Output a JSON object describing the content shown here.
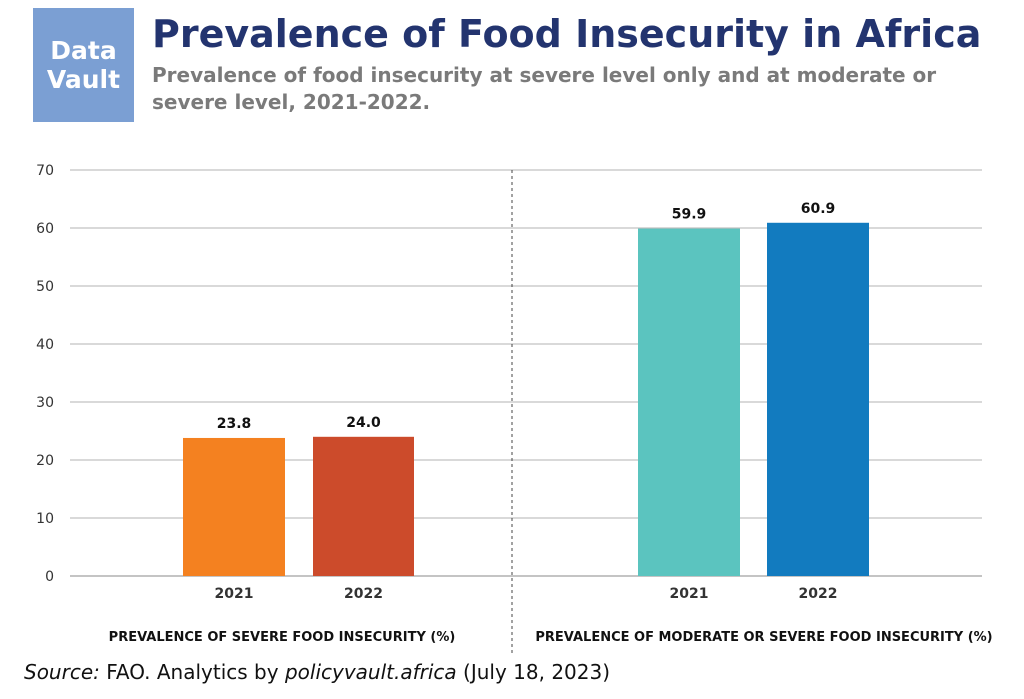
{
  "logo": {
    "line1": "Data",
    "line2": "Vault"
  },
  "title": "Prevalence of Food Insecurity in Africa",
  "subtitle": "Prevalence of food insecurity at severe level only and at moderate or severe level, 2021-2022.",
  "source": {
    "label": "Source:",
    "text_before": " FAO. Analytics by ",
    "site": "policyvault.africa",
    "text_after": " (July 18, 2023)"
  },
  "chart_data": {
    "type": "bar",
    "ylim": [
      0,
      70
    ],
    "yticks": [
      0,
      10,
      20,
      30,
      40,
      50,
      60,
      70
    ],
    "grid": true,
    "groups": [
      {
        "label": "PREVALENCE OF SEVERE FOOD INSECURITY (%)",
        "bars": [
          {
            "category": "2021",
            "value": 23.8,
            "label": "23.8",
            "color": "#f48120"
          },
          {
            "category": "2022",
            "value": 24.0,
            "label": "24.0",
            "color": "#cc4b2b"
          }
        ]
      },
      {
        "label": "PREVALENCE OF MODERATE OR SEVERE FOOD INSECURITY (%)",
        "bars": [
          {
            "category": "2021",
            "value": 59.9,
            "label": "59.9",
            "color": "#5bc4bf"
          },
          {
            "category": "2022",
            "value": 60.9,
            "label": "60.9",
            "color": "#127bbf"
          }
        ]
      }
    ]
  }
}
